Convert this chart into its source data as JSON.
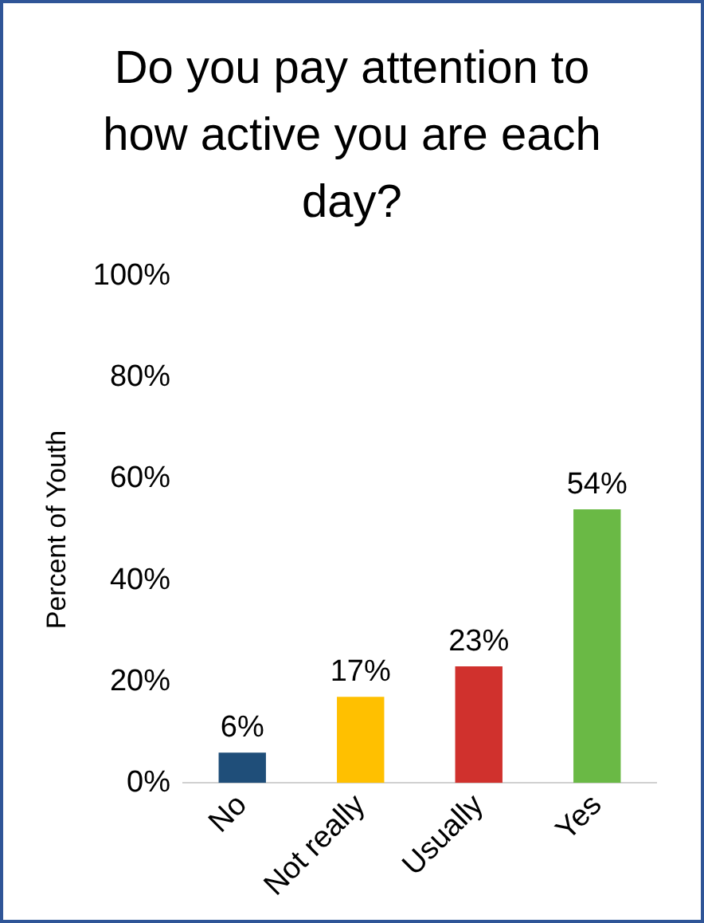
{
  "chart_data": {
    "type": "bar",
    "title": "Do you pay attention to how active you are each day?",
    "ylabel": "Percent of Youth",
    "categories": [
      "No",
      "Not really",
      "Usually",
      "Yes"
    ],
    "values": [
      6,
      17,
      23,
      54
    ],
    "colors": [
      "#1f4e79",
      "#ffc000",
      "#d0312d",
      "#6ab945"
    ],
    "value_labels": [
      "6%",
      "17%",
      "23%",
      "54%"
    ],
    "ylim": [
      0,
      100
    ],
    "yticks": [
      {
        "value": 0,
        "label": "0%"
      },
      {
        "value": 20,
        "label": "20%"
      },
      {
        "value": 40,
        "label": "40%"
      },
      {
        "value": 60,
        "label": "60%"
      },
      {
        "value": 80,
        "label": "80%"
      },
      {
        "value": 100,
        "label": "100%"
      }
    ],
    "grid": false,
    "legend": false
  }
}
